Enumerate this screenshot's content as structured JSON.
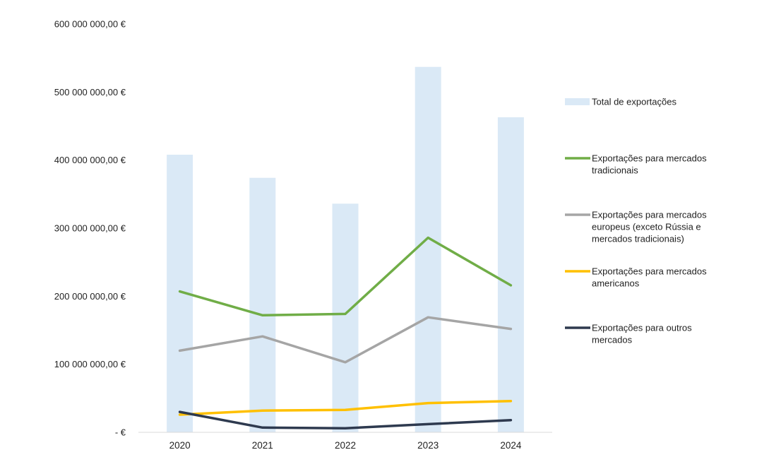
{
  "chart_data": {
    "type": "bar",
    "categories": [
      "2020",
      "2021",
      "2022",
      "2023",
      "2024"
    ],
    "ylim": [
      0,
      600000000
    ],
    "y_ticks": [
      {
        "value": 0,
        "label": "-  €"
      },
      {
        "value": 100000000,
        "label": "100 000 000,00 €"
      },
      {
        "value": 200000000,
        "label": "200 000 000,00 €"
      },
      {
        "value": 300000000,
        "label": "300 000 000,00 €"
      },
      {
        "value": 400000000,
        "label": "400 000 000,00 €"
      },
      {
        "value": 500000000,
        "label": "500 000 000,00 €"
      },
      {
        "value": 600000000,
        "label": "600 000 000,00 €"
      }
    ],
    "grid": false,
    "legend_position": "right",
    "series": [
      {
        "name": "Total de exportações",
        "legend_lines": [
          "Total de exportações"
        ],
        "kind": "bar",
        "color": "#dae9f6",
        "values": [
          408000000,
          374000000,
          336000000,
          537000000,
          463000000
        ]
      },
      {
        "name": "Exportações para mercados tradicionais",
        "legend_lines": [
          "Exportações para mercados",
          "tradicionais"
        ],
        "kind": "line",
        "color": "#70ad47",
        "values": [
          207000000,
          172000000,
          174000000,
          286000000,
          216000000
        ]
      },
      {
        "name": "Exportações para mercados europeus (exceto Rússia e mercados tradicionais)",
        "legend_lines": [
          "Exportações para mercados",
          "europeus (exceto Rússia e",
          "mercados tradicionais)"
        ],
        "kind": "line",
        "color": "#a5a5a5",
        "values": [
          120000000,
          141000000,
          103000000,
          169000000,
          152000000
        ]
      },
      {
        "name": "Exportações para mercados americanos",
        "legend_lines": [
          "Exportações para mercados",
          "americanos"
        ],
        "kind": "line",
        "color": "#ffc000",
        "values": [
          26000000,
          32000000,
          33000000,
          43000000,
          46000000
        ]
      },
      {
        "name": "Exportações para outros mercados",
        "legend_lines": [
          "Exportações para outros",
          "mercados"
        ],
        "kind": "line",
        "color": "#2e3a4f",
        "values": [
          30000000,
          7000000,
          6000000,
          12000000,
          18000000
        ]
      }
    ]
  }
}
